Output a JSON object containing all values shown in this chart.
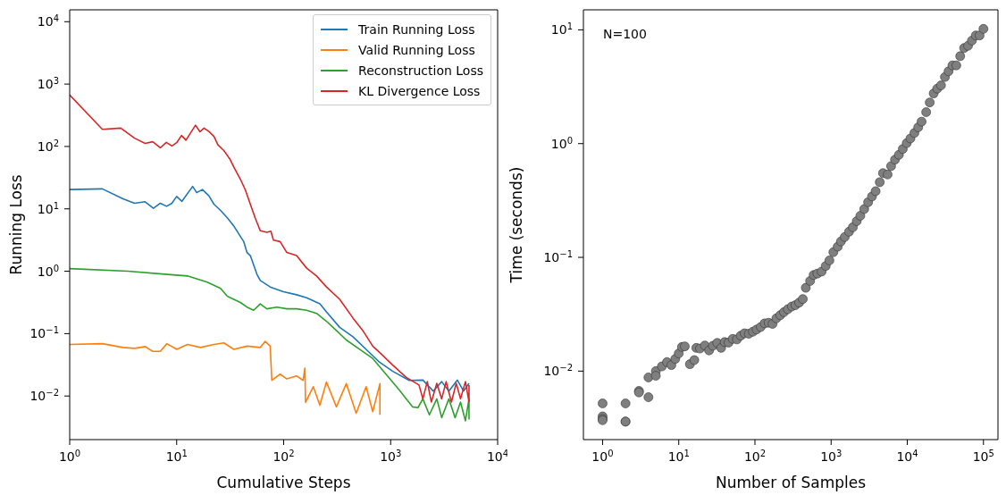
{
  "chart_data": [
    {
      "type": "line",
      "xlabel": "Cumulative Steps",
      "ylabel": "Running Loss",
      "log": "xy",
      "legend": "top right",
      "xlim": [
        1,
        10000
      ],
      "ylim": [
        0.002,
        15500
      ],
      "xticks": [
        {
          "value": 1,
          "label": "10$^{0}$"
        },
        {
          "value": 10,
          "label": "10$^{1}$"
        },
        {
          "value": 100,
          "label": "10$^{2}$"
        },
        {
          "value": 1000,
          "label": "10$^{3}$"
        },
        {
          "value": 10000,
          "label": "10$^{4}$"
        }
      ],
      "yticks": [
        {
          "value": 0.01,
          "label": "10$^{−2}$"
        },
        {
          "value": 0.1,
          "label": "10$^{−1}$"
        },
        {
          "value": 1,
          "label": "10$^{0}$"
        },
        {
          "value": 10,
          "label": "10$^{1}$"
        },
        {
          "value": 100,
          "label": "10$^{2}$"
        },
        {
          "value": 1000,
          "label": "10$^{3}$"
        },
        {
          "value": 10000,
          "label": "10$^{4}$"
        }
      ],
      "series": [
        {
          "name": "Train Running Loss",
          "color": "#1f77b4",
          "x": [
            1,
            2.02,
            3.15,
            4.04,
            5.07,
            6.06,
            7.03,
            8.06,
            9.02,
            10,
            11.2,
            14.1,
            15.4,
            17.4,
            20,
            22.3,
            25.7,
            29.6,
            34.2,
            38,
            42.3,
            45.4,
            48.8,
            56.3,
            60.4,
            74.8,
            99.5,
            132,
            164,
            218,
            251,
            334,
            444,
            590,
            784,
            1040,
            1490,
            2000,
            2500,
            3000,
            3500,
            4200,
            4800,
            5400
          ],
          "values": [
            20.4,
            20.9,
            14.5,
            12.3,
            13,
            10.2,
            12.3,
            11,
            12.3,
            15.8,
            13.2,
            22.9,
            18.2,
            20.4,
            16.2,
            11.9,
            9.44,
            7.24,
            5.31,
            3.98,
            2.99,
            2,
            1.78,
            0.89,
            0.71,
            0.56,
            0.47,
            0.42,
            0.376,
            0.3,
            0.224,
            0.126,
            0.089,
            0.056,
            0.035,
            0.025,
            0.0178,
            0.018,
            0.012,
            0.017,
            0.012,
            0.018,
            0.012,
            0.016
          ]
        },
        {
          "name": "Valid Running Loss",
          "color": "#ff7f0e",
          "x": [
            1,
            2.02,
            3.15,
            4.04,
            5.07,
            5.97,
            7.03,
            8.1,
            10,
            12.6,
            16.7,
            22.3,
            27.6,
            34.2,
            45.4,
            60.4,
            67.2,
            74.8,
            77.5,
            92.6,
            107,
            132,
            152,
            158,
            160,
            189,
            218,
            251,
            311,
            385,
            476,
            590,
            680,
            794,
            794
          ],
          "values": [
            0.067,
            0.069,
            0.06,
            0.058,
            0.062,
            0.052,
            0.052,
            0.069,
            0.056,
            0.067,
            0.06,
            0.067,
            0.071,
            0.056,
            0.063,
            0.06,
            0.075,
            0.063,
            0.0178,
            0.0224,
            0.0188,
            0.021,
            0.0178,
            0.028,
            0.0079,
            0.0141,
            0.0071,
            0.0168,
            0.0067,
            0.0158,
            0.0053,
            0.0141,
            0.0056,
            0.0158,
            0.005
          ]
        },
        {
          "name": "Reconstruction Loss",
          "color": "#2ca02c",
          "x": [
            1,
            3.5,
            8.2,
            12.6,
            19.3,
            25.7,
            29.6,
            34.2,
            39.4,
            45.4,
            52.4,
            60.4,
            69.6,
            86.3,
            107,
            132,
            164,
            203,
            251,
            311,
            385,
            512,
            680,
            904,
            1200,
            1600,
            1800,
            2000,
            2300,
            2700,
            3000,
            3500,
            4000,
            4500,
            5000,
            5400,
            5400
          ],
          "values": [
            1.1,
            1,
            0.89,
            0.84,
            0.67,
            0.53,
            0.4,
            0.355,
            0.316,
            0.266,
            0.237,
            0.3,
            0.25,
            0.266,
            0.25,
            0.25,
            0.237,
            0.211,
            0.158,
            0.112,
            0.079,
            0.056,
            0.04,
            0.0224,
            0.0126,
            0.0067,
            0.0065,
            0.009,
            0.005,
            0.009,
            0.0045,
            0.009,
            0.0045,
            0.008,
            0.004,
            0.009,
            0.0042
          ]
        },
        {
          "name": "KL Divergence Loss",
          "color": "#d62728",
          "x": [
            1,
            2.02,
            3,
            4.04,
            5.07,
            5.97,
            7.03,
            8,
            9.02,
            10,
            11.1,
            12.2,
            15,
            16.5,
            18,
            20,
            22.3,
            24.3,
            27.6,
            31.4,
            34.7,
            39.4,
            43.9,
            48.8,
            54.3,
            60.4,
            69.6,
            75.9,
            80.3,
            92.6,
            107,
            132,
            164,
            203,
            251,
            334,
            444,
            549,
            680,
            841,
            1040,
            1390,
            1840,
            2000,
            2200,
            2400,
            2700,
            3000,
            3300,
            3700,
            4100,
            4500,
            5000,
            5400,
            5400
          ],
          "values": [
            668,
            188,
            197,
            136,
            112,
            119,
            95,
            116,
            102,
            115,
            150,
            126,
            219,
            172,
            197,
            174,
            145,
            106,
            86,
            63,
            44.7,
            29.9,
            20,
            11.9,
            7.08,
            4.47,
            4.22,
            4.37,
            3.16,
            2.99,
            2,
            1.78,
            1.12,
            0.84,
            0.56,
            0.355,
            0.178,
            0.112,
            0.063,
            0.045,
            0.0316,
            0.02,
            0.015,
            0.009,
            0.017,
            0.008,
            0.016,
            0.009,
            0.017,
            0.008,
            0.016,
            0.009,
            0.017,
            0.008,
            0.015
          ]
        }
      ]
    },
    {
      "type": "scatter",
      "xlabel": "Number of Samples",
      "ylabel": "Time (seconds)",
      "log": "xy",
      "marker": "circle",
      "annotations": [
        "N=100"
      ],
      "xlim": [
        0.56,
        155000
      ],
      "ylim": [
        0.0025,
        15
      ],
      "xticks": [
        {
          "value": 1,
          "label": "10$^{0}$"
        },
        {
          "value": 10,
          "label": "10$^{1}$"
        },
        {
          "value": 100,
          "label": "10$^{2}$"
        },
        {
          "value": 1000,
          "label": "10$^{3}$"
        },
        {
          "value": 10000,
          "label": "10$^{4}$"
        },
        {
          "value": 100000,
          "label": "10$^{5}$"
        }
      ],
      "yticks": [
        {
          "value": 0.01,
          "label": "10$^{−2}$"
        },
        {
          "value": 0.1,
          "label": "10$^{−1}$"
        },
        {
          "value": 1,
          "label": "10$^{0}$"
        },
        {
          "value": 10,
          "label": "10$^{1}$"
        }
      ],
      "series": [
        {
          "color": "#7f7f7f",
          "x": [
            1,
            1,
            1,
            1,
            2,
            2,
            2,
            3,
            3,
            4,
            4,
            5,
            5,
            6,
            7,
            8,
            9,
            10,
            11,
            12,
            14,
            16,
            17,
            19,
            22,
            25,
            28,
            32,
            36,
            40,
            45,
            51,
            58,
            65,
            73,
            83,
            94,
            105,
            119,
            134,
            151,
            170,
            191,
            215,
            240,
            270,
            305,
            340,
            380,
            425,
            465,
            530,
            590,
            660,
            750,
            850,
            950,
            1070,
            1220,
            1345,
            1510,
            1720,
            1930,
            2170,
            2420,
            2720,
            3060,
            3440,
            3840,
            4350,
            4800,
            5510,
            6130,
            6900,
            7760,
            8730,
            9830,
            11000,
            12400,
            13900,
            15400,
            17700,
            19700,
            22200,
            24700,
            27700,
            31200,
            34800,
            39100,
            44000,
            49500,
            55700,
            62700,
            70500,
            79300,
            89000,
            100000
          ],
          "values": [
            0.0052,
            0.004,
            0.0038,
            0.0037,
            0.0052,
            0.0036,
            0.0036,
            0.0067,
            0.0065,
            0.0088,
            0.0059,
            0.01,
            0.0091,
            0.011,
            0.012,
            0.0113,
            0.0128,
            0.0143,
            0.0163,
            0.0165,
            0.0115,
            0.0125,
            0.016,
            0.0158,
            0.0168,
            0.0152,
            0.0167,
            0.0177,
            0.016,
            0.018,
            0.0178,
            0.0192,
            0.019,
            0.0205,
            0.0215,
            0.0213,
            0.0222,
            0.0232,
            0.0244,
            0.0263,
            0.0266,
            0.026,
            0.0291,
            0.031,
            0.033,
            0.035,
            0.037,
            0.038,
            0.04,
            0.043,
            0.054,
            0.062,
            0.07,
            0.072,
            0.075,
            0.084,
            0.094,
            0.111,
            0.124,
            0.138,
            0.151,
            0.168,
            0.184,
            0.208,
            0.232,
            0.266,
            0.305,
            0.343,
            0.382,
            0.458,
            0.55,
            0.535,
            0.634,
            0.723,
            0.797,
            0.897,
            1.01,
            1.11,
            1.24,
            1.39,
            1.56,
            1.89,
            2.3,
            2.76,
            3.04,
            3.25,
            3.85,
            4.32,
            4.87,
            4.87,
            5.87,
            6.92,
            7.24,
            8.04,
            8.93,
            8.93,
            10.2
          ]
        }
      ]
    }
  ]
}
